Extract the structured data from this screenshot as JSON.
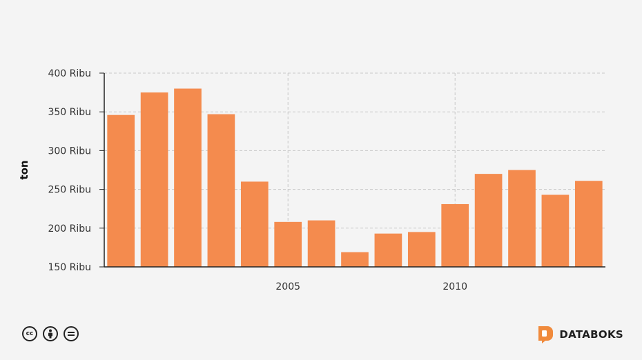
{
  "chart_data": {
    "type": "bar",
    "x": [
      2000,
      2001,
      2002,
      2003,
      2004,
      2005,
      2006,
      2007,
      2008,
      2009,
      2010,
      2011,
      2012,
      2013,
      2014
    ],
    "values": [
      346,
      375,
      380,
      347,
      260,
      208,
      210,
      169,
      193,
      195,
      231,
      270,
      275,
      243,
      261
    ],
    "ylabel": "ton",
    "ylim": [
      150,
      400
    ],
    "yticks": [
      150,
      200,
      250,
      300,
      350,
      400
    ],
    "ytick_labels": [
      "150 Ribu",
      "200 Ribu",
      "250 Ribu",
      "300 Ribu",
      "350 Ribu",
      "400 Ribu"
    ],
    "xticks": [
      2005,
      2010
    ],
    "xtick_labels": [
      "2005",
      "2010"
    ],
    "grid": true,
    "bar_color": "#f48b4e"
  },
  "footer": {
    "license_icons": [
      "creative-commons-icon",
      "attribution-icon",
      "no-derivatives-icon"
    ],
    "brand": "DATABOKS",
    "brand_color": "#f08a3c"
  }
}
